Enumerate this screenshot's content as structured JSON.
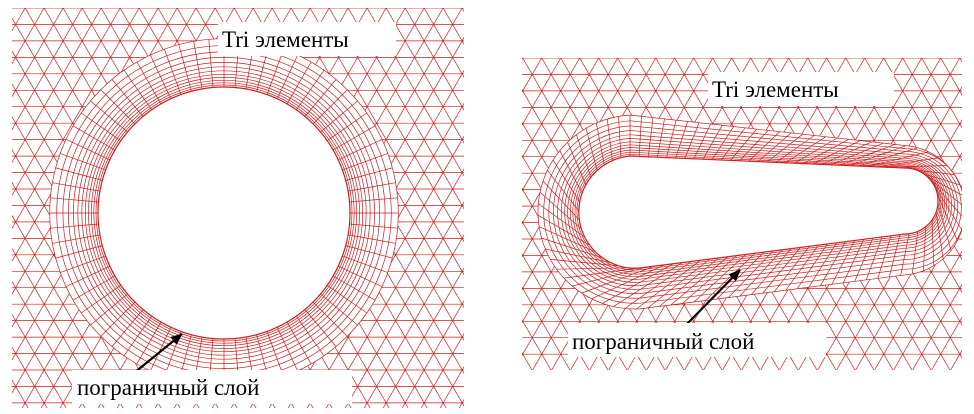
{
  "colors": {
    "mesh": "#cc1f1f",
    "text": "#000000",
    "background": "#ffffff"
  },
  "panels": [
    {
      "shape": "circle",
      "label_elements": "Tri элементы",
      "label_boundary": "пограничный слой"
    },
    {
      "shape": "airfoil",
      "label_elements": "Tri элементы",
      "label_boundary": "пограничный слой"
    }
  ]
}
